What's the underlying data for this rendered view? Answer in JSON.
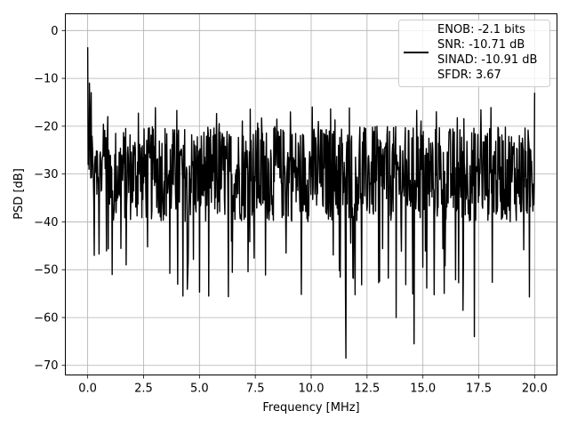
{
  "chart_data": {
    "type": "line",
    "xlabel": "Frequency [MHz]",
    "ylabel": "PSD [dB]",
    "xlim": [
      -1.0,
      21.0
    ],
    "ylim": [
      -72.0,
      3.5
    ],
    "xticks": [
      0.0,
      2.5,
      5.0,
      7.5,
      10.0,
      12.5,
      15.0,
      17.5,
      20.0
    ],
    "xtick_labels": [
      "0.0",
      "2.5",
      "5.0",
      "7.5",
      "10.0",
      "12.5",
      "15.0",
      "17.5",
      "20.0"
    ],
    "yticks": [
      0,
      -10,
      -20,
      -30,
      -40,
      -50,
      -60,
      -70
    ],
    "ytick_labels": [
      "0",
      "−10",
      "−20",
      "−30",
      "−40",
      "−50",
      "−60",
      "−70"
    ],
    "grid": true,
    "legend_position": "top-right",
    "legend_entries": [
      "ENOB: -2.1 bits",
      "SNR: -10.71 dB",
      "SINAD: -10.91 dB",
      "SFDR: 3.67"
    ],
    "line_color": "#000000",
    "series": [
      {
        "x_range": [
          0,
          20
        ],
        "points": 1024,
        "noise_floor_db": -30,
        "noise_band_db": [
          -40,
          -20
        ],
        "peaks": [
          {
            "x": 0.0,
            "y": -3.5
          },
          {
            "x": 0.05,
            "y": -29
          },
          {
            "x": 0.08,
            "y": -11
          },
          {
            "x": 0.15,
            "y": -13
          },
          {
            "x": 0.3,
            "y": -47
          },
          {
            "x": 0.9,
            "y": -18
          },
          {
            "x": 1.1,
            "y": -51
          },
          {
            "x": 10.05,
            "y": -16
          },
          {
            "x": 11.55,
            "y": -68.5
          },
          {
            "x": 13.8,
            "y": -60
          },
          {
            "x": 14.6,
            "y": -65.5
          },
          {
            "x": 15.6,
            "y": -17
          },
          {
            "x": 16.8,
            "y": -58.5
          },
          {
            "x": 17.3,
            "y": -64
          },
          {
            "x": 20.0,
            "y": -13
          }
        ]
      }
    ]
  }
}
